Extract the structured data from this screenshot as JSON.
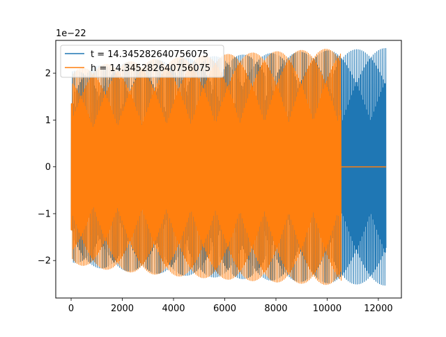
{
  "chart_data": {
    "type": "line",
    "title": "",
    "xlabel": "",
    "ylabel": "",
    "offset_label": "1e−22",
    "xlim": [
      -600,
      12900
    ],
    "ylim": [
      -2.8,
      2.7
    ],
    "y_unit_exponent": -22,
    "xticks": [
      0,
      2000,
      4000,
      6000,
      8000,
      10000,
      12000
    ],
    "xtick_labels": [
      "0",
      "2000",
      "4000",
      "6000",
      "8000",
      "10000",
      "12000"
    ],
    "yticks": [
      -2,
      -1,
      0,
      1,
      2
    ],
    "ytick_labels": [
      "−2",
      "−1",
      "0",
      "1",
      "2"
    ],
    "grid": false,
    "legend_position": "top-left",
    "series": [
      {
        "name": "t = 14.345282640756075",
        "color": "#1f77b4",
        "envelope": {
          "x": [
            0,
            12300
          ],
          "amplitude": [
            2.0,
            2.53
          ]
        },
        "x_end": 12300
      },
      {
        "name": "h = 14.345282640756075",
        "color": "#ff7f0e",
        "envelope": {
          "x": [
            0,
            10550
          ],
          "amplitude": [
            2.0,
            2.53
          ]
        },
        "x_end": 10550,
        "tail": {
          "x": [
            10550,
            12300
          ],
          "value": 0
        }
      }
    ]
  }
}
